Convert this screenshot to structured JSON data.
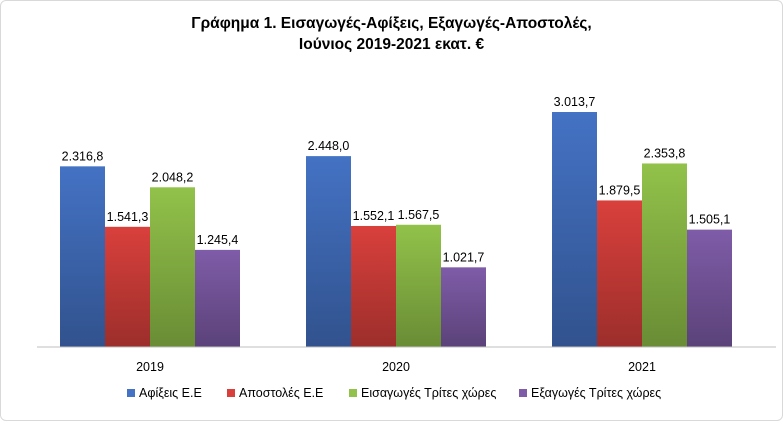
{
  "chart_data": {
    "type": "bar",
    "title_lines": [
      "Γράφημα 1. Εισαγωγές-Αφίξεις, Εξαγωγές-Αποστολές,",
      "Ιούνιος 2019-2021 εκατ. €"
    ],
    "categories": [
      "2019",
      "2020",
      "2021"
    ],
    "series": [
      {
        "name": "Αφίξεις Ε.Ε",
        "color": "#4472C4",
        "values": [
          2316.8,
          2448.0,
          3013.7
        ],
        "labels": [
          "2.316,8",
          "2.448,0",
          "3.013,7"
        ]
      },
      {
        "name": "Αποστολές  Ε.Ε",
        "color": "#D9403C",
        "values": [
          1541.3,
          1552.1,
          1879.5
        ],
        "labels": [
          "1.541,3",
          "1.552,1",
          "1.879,5"
        ]
      },
      {
        "name": "Εισαγωγές Τρίτες χώρες",
        "color": "#92C24A",
        "values": [
          2048.2,
          1567.5,
          2353.8
        ],
        "labels": [
          "2.048,2",
          "1.567,5",
          "2.353,8"
        ]
      },
      {
        "name": "Εξαγωγές Τρίτες χώρες",
        "color": "#7F5CA8",
        "values": [
          1245.4,
          1021.7,
          1505.1
        ],
        "labels": [
          "1.245,4",
          "1.021,7",
          "1.505,1"
        ]
      }
    ],
    "ylim": [
      0,
      3500
    ],
    "legend_position": "bottom",
    "grid": false
  }
}
